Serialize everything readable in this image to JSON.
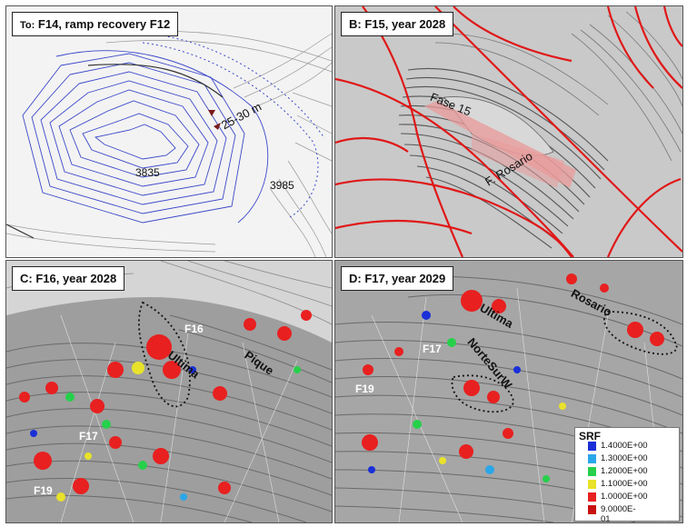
{
  "panels": {
    "a": {
      "caption_prefix": "To:",
      "caption": "F14, ramp recovery F12",
      "elev_left": "3835",
      "elev_right": "3985",
      "dimension": "25-30 m"
    },
    "b": {
      "caption": "B: F15, year 2028",
      "phase_label": "Fase 15",
      "fault_label": "F. Rosario"
    },
    "c": {
      "caption": "C: F16, year 2028",
      "labels": {
        "f16": "F16",
        "ultima": "Ultima",
        "pique": "Pique",
        "f17": "F17",
        "f19": "F19"
      }
    },
    "d": {
      "caption": "D: F17, year 2029",
      "labels": {
        "ultima": "Ultima",
        "rosario": "Rosario",
        "norte": "NorteSurW",
        "f17": "F17",
        "f19": "F19"
      }
    }
  },
  "legend": {
    "title": "SRF",
    "entries": [
      {
        "label": "1.4000E+00",
        "color": "#1a2fd8"
      },
      {
        "label": "1.3000E+00",
        "color": "#2aa7e8"
      },
      {
        "label": "1.2000E+00",
        "color": "#27d04a"
      },
      {
        "label": "1.1000E+00",
        "color": "#e9e22a"
      },
      {
        "label": "1.0000E+00",
        "color": "#e82020"
      },
      {
        "label": "9.0000E-01",
        "color": "#c81010"
      }
    ]
  },
  "colors": {
    "fault": "#e01818",
    "design_line": "#3b48c9",
    "bench_dark": "#555555",
    "surface": "#c8c8c8"
  }
}
